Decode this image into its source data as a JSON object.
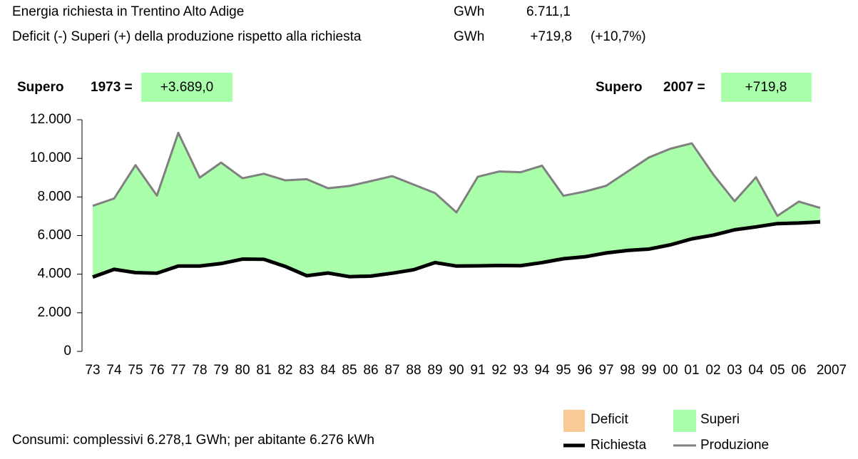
{
  "chart_data": {
    "type": "area-band",
    "header_rows": [
      {
        "label": "Energia richiesta in Trentino Alto Adige",
        "unit": "GWh",
        "value": "6.711,1"
      },
      {
        "label": "Deficit (-) Superi (+) della produzione rispetto alla richiesta",
        "unit": "GWh",
        "value": "+719,8",
        "percent": "(+10,7%)"
      }
    ],
    "annotations": [
      {
        "label": "Supero",
        "year": "1973 =",
        "value": "+3.689,0"
      },
      {
        "label": "Supero",
        "year": "2007 =",
        "value": "+719,8"
      }
    ],
    "footer": "Consumi: complessivi 6.278,1 GWh; per abitante 6.276 kWh",
    "categories": [
      "73",
      "74",
      "75",
      "76",
      "77",
      "78",
      "79",
      "80",
      "81",
      "82",
      "83",
      "84",
      "85",
      "86",
      "87",
      "88",
      "89",
      "90",
      "91",
      "92",
      "93",
      "94",
      "95",
      "96",
      "97",
      "98",
      "99",
      "00",
      "01",
      "02",
      "03",
      "04",
      "05",
      "06",
      "2007"
    ],
    "series": [
      {
        "name": "Richiesta",
        "color": "#000000",
        "values": [
          3850,
          4250,
          4080,
          4050,
          4420,
          4420,
          4550,
          4780,
          4770,
          4400,
          3920,
          4060,
          3870,
          3900,
          4050,
          4230,
          4600,
          4420,
          4430,
          4450,
          4440,
          4600,
          4800,
          4900,
          5100,
          5230,
          5300,
          5520,
          5830,
          6020,
          6300,
          6450,
          6620,
          6650,
          6711.1
        ]
      },
      {
        "name": "Produzione",
        "color": "#808080",
        "values": [
          7539,
          7920,
          9650,
          8070,
          11320,
          9000,
          9780,
          8970,
          9200,
          8860,
          8920,
          8450,
          8570,
          8820,
          9080,
          8640,
          8200,
          7200,
          9050,
          9320,
          9280,
          9620,
          8060,
          8280,
          8580,
          9320,
          10050,
          10500,
          10780,
          9170,
          7780,
          9020,
          7020,
          7760,
          7430.9
        ]
      }
    ],
    "areas": [
      {
        "name": "Deficit",
        "color": "#f9c996"
      },
      {
        "name": "Superi",
        "color": "#aaffaa"
      }
    ],
    "ylim": [
      0,
      12000
    ],
    "yticks": [
      0,
      {
        "value": 2000,
        "label": "2.000"
      },
      {
        "value": 4000,
        "label": "4.000"
      },
      {
        "value": 6000,
        "label": "6.000"
      },
      {
        "value": 8000,
        "label": "8.000"
      },
      {
        "value": 10000,
        "label": "10.000"
      },
      {
        "value": 12000,
        "label": "12.000"
      }
    ]
  }
}
